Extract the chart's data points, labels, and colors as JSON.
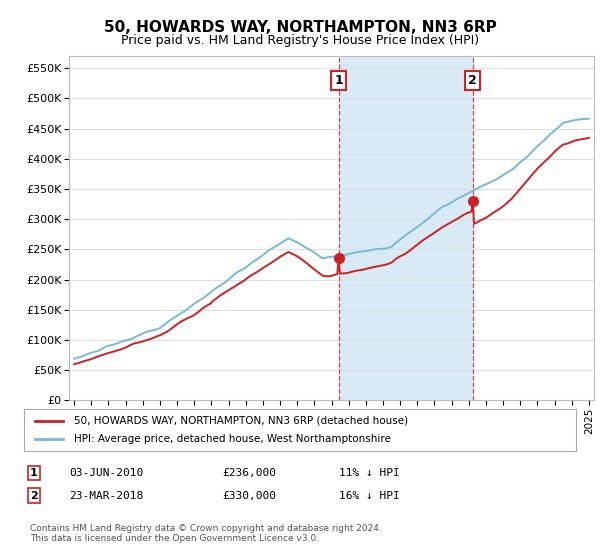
{
  "title": "50, HOWARDS WAY, NORTHAMPTON, NN3 6RP",
  "subtitle": "Price paid vs. HM Land Registry's House Price Index (HPI)",
  "ylabel_ticks": [
    "£0",
    "£50K",
    "£100K",
    "£150K",
    "£200K",
    "£250K",
    "£300K",
    "£350K",
    "£400K",
    "£450K",
    "£500K",
    "£550K"
  ],
  "ytick_vals": [
    0,
    50000,
    100000,
    150000,
    200000,
    250000,
    300000,
    350000,
    400000,
    450000,
    500000,
    550000
  ],
  "ylim": [
    0,
    570000
  ],
  "hpi_color": "#7ab8d9",
  "price_color": "#cc2222",
  "marker1_x": 2010.42,
  "marker1_price": 236000,
  "marker2_x": 2018.22,
  "marker2_price": 330000,
  "legend_line1": "50, HOWARDS WAY, NORTHAMPTON, NN3 6RP (detached house)",
  "legend_line2": "HPI: Average price, detached house, West Northamptonshire",
  "footnote": "Contains HM Land Registry data © Crown copyright and database right 2024.\nThis data is licensed under the Open Government Licence v3.0.",
  "bg_color": "#ffffff",
  "grid_color": "#dddddd",
  "shade_color": "#d8eaf6"
}
